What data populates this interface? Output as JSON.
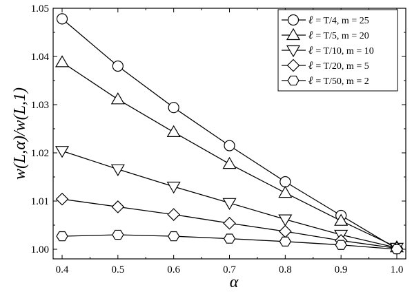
{
  "chart_data": {
    "type": "line",
    "xlabel": "α",
    "ylabel": "w(L,α)/w(L,1)",
    "xlim": [
      0.4,
      1.0
    ],
    "ylim": [
      0.998,
      1.05
    ],
    "xticks": [
      "0.4",
      "0.5",
      "0.6",
      "0.7",
      "0.8",
      "0.9",
      "1.0"
    ],
    "yticks": [
      "1.00",
      "1.01",
      "1.02",
      "1.03",
      "1.04",
      "1.05"
    ],
    "grid": false,
    "legend_position": "top-right",
    "x": [
      0.4,
      0.5,
      0.6,
      0.7,
      0.8,
      0.9,
      1.0
    ],
    "series": [
      {
        "name": "ℓ = T/4, m = 25",
        "legend_ell": "ℓ",
        "legend_rest": "= T/4,   m = 25",
        "marker": "circle",
        "values": [
          1.0478,
          1.038,
          1.0294,
          1.0215,
          1.014,
          1.007,
          1.0001
        ]
      },
      {
        "name": "ℓ = T/5, m = 20",
        "legend_ell": "ℓ",
        "legend_rest": "= T/5,   m = 20",
        "marker": "triangle-up",
        "values": [
          1.0388,
          1.0311,
          1.0243,
          1.0177,
          1.0117,
          1.0059,
          1.0004
        ]
      },
      {
        "name": "ℓ = T/10, m = 10",
        "legend_ell": "ℓ",
        "legend_rest": "= T/10, m = 10",
        "marker": "triangle-down",
        "values": [
          1.0204,
          1.0166,
          1.013,
          1.0096,
          1.0062,
          1.003,
          1.0003
        ]
      },
      {
        "name": "ℓ = T/20, m = 5",
        "legend_ell": "ℓ",
        "legend_rest": "= T/20, m = 5",
        "marker": "diamond",
        "values": [
          1.0104,
          1.0088,
          1.0072,
          1.0054,
          1.0037,
          1.0018,
          1.0002
        ]
      },
      {
        "name": "ℓ = T/50, m = 2",
        "legend_ell": "ℓ",
        "legend_rest": "= T/50, m = 2",
        "marker": "hexagon",
        "values": [
          1.0027,
          1.003,
          1.0027,
          1.0022,
          1.0016,
          1.0009,
          1.0
        ]
      }
    ]
  }
}
